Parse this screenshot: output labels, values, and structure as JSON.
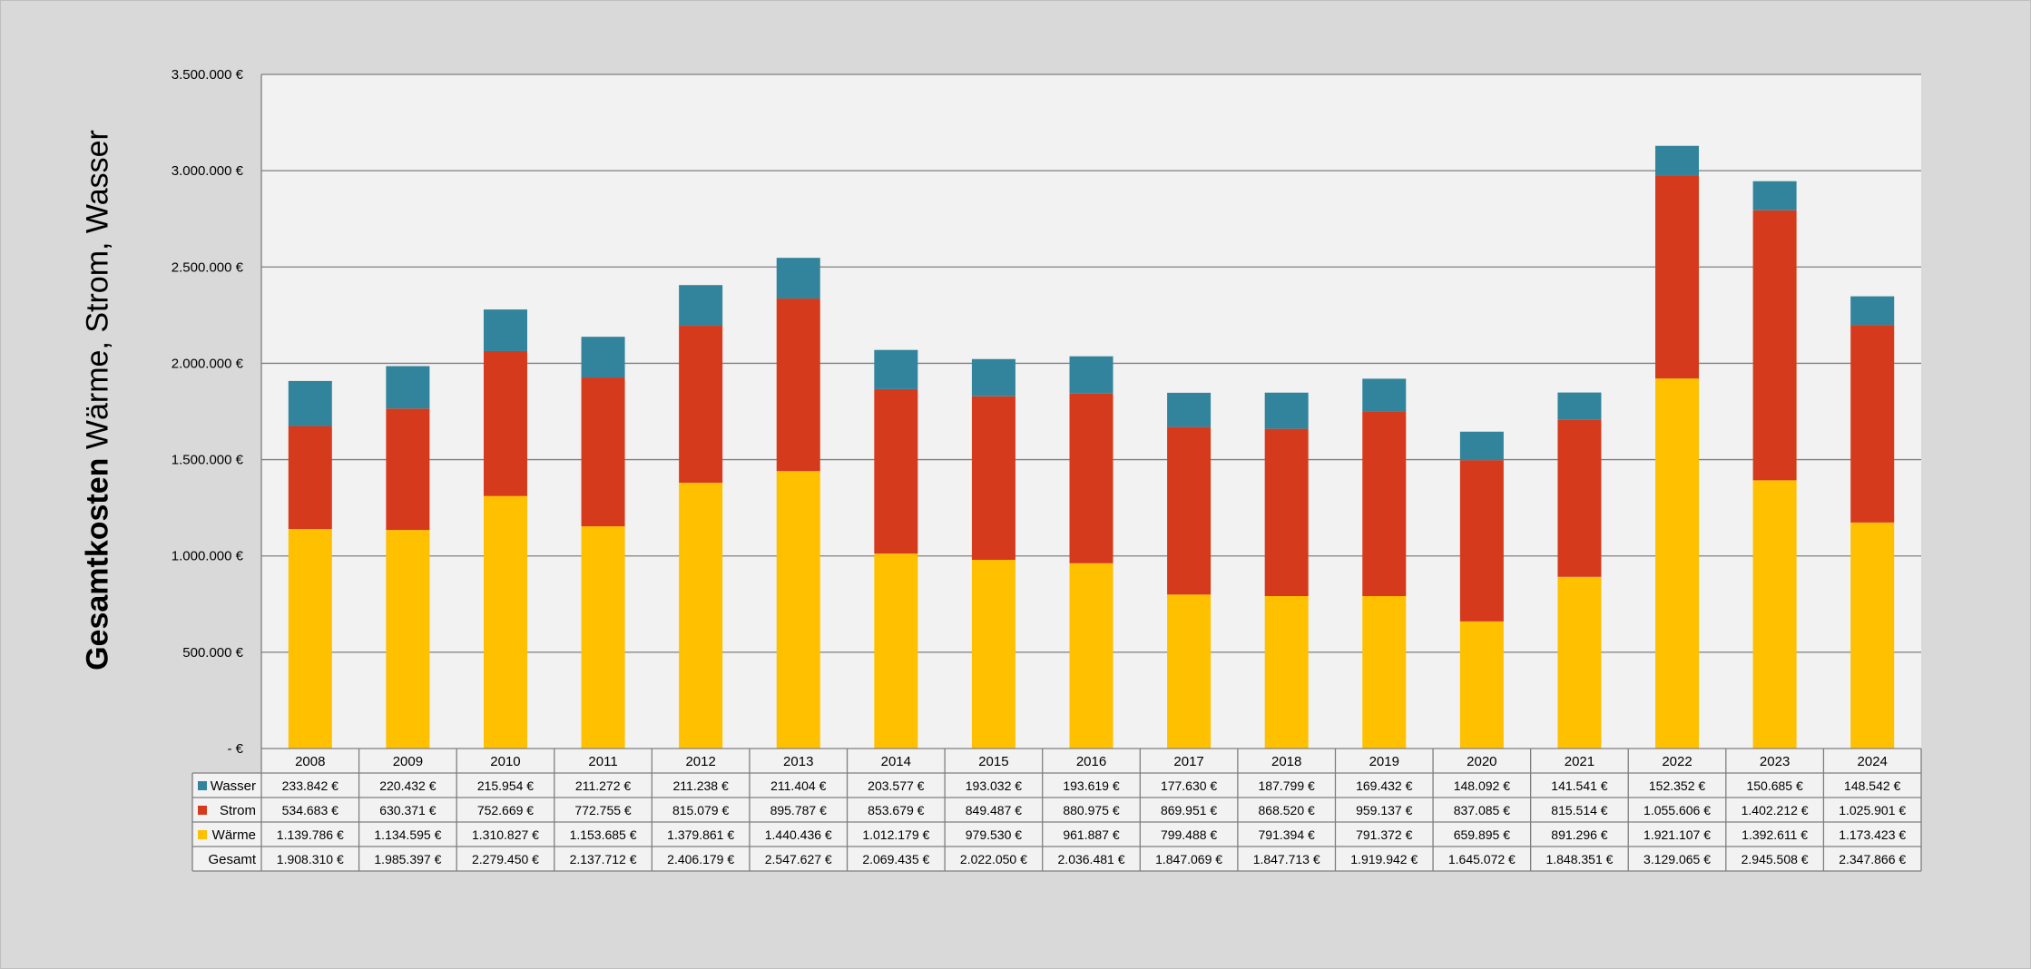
{
  "chart_data": {
    "type": "bar",
    "stacked": true,
    "title": "",
    "ylabel_bold": "Gesamtkosten",
    "ylabel_rest": "Wärme, Strom, Wasser",
    "ylim": [
      0,
      3500000
    ],
    "yticks": [
      0,
      500000,
      1000000,
      1500000,
      2000000,
      2500000,
      3000000,
      3500000
    ],
    "ytick_labels": [
      "-  €",
      "500.000 €",
      "1.000.000 €",
      "1.500.000 €",
      "2.000.000 €",
      "2.500.000 €",
      "3.000.000 €",
      "3.500.000 €"
    ],
    "grid": true,
    "legend": "data-table",
    "categories": [
      "2008",
      "2009",
      "2010",
      "2011",
      "2012",
      "2013",
      "2014",
      "2015",
      "2016",
      "2017",
      "2018",
      "2019",
      "2020",
      "2021",
      "2022",
      "2023",
      "2024"
    ],
    "series": [
      {
        "name": "Wärme",
        "color": "#ffc000",
        "values": [
          1139786,
          1134595,
          1310827,
          1153685,
          1379861,
          1440436,
          1012179,
          979530,
          961887,
          799488,
          791394,
          791372,
          659895,
          891296,
          1921107,
          1392611,
          1173423
        ],
        "labels": [
          "1.139.786 €",
          "1.134.595 €",
          "1.310.827 €",
          "1.153.685 €",
          "1.379.861 €",
          "1.440.436 €",
          "1.012.179 €",
          "979.530 €",
          "961.887 €",
          "799.488 €",
          "791.394 €",
          "791.372 €",
          "659.895 €",
          "891.296 €",
          "1.921.107 €",
          "1.392.611 €",
          "1.173.423 €"
        ]
      },
      {
        "name": "Strom",
        "color": "#d63a1c",
        "values": [
          534683,
          630371,
          752669,
          772755,
          815079,
          895787,
          853679,
          849487,
          880975,
          869951,
          868520,
          959137,
          837085,
          815514,
          1055606,
          1402212,
          1025901
        ],
        "labels": [
          "534.683 €",
          "630.371 €",
          "752.669 €",
          "772.755 €",
          "815.079 €",
          "895.787 €",
          "853.679 €",
          "849.487 €",
          "880.975 €",
          "869.951 €",
          "868.520 €",
          "959.137 €",
          "837.085 €",
          "815.514 €",
          "1.055.606 €",
          "1.402.212 €",
          "1.025.901 €"
        ]
      },
      {
        "name": "Wasser",
        "color": "#31849b",
        "values": [
          233842,
          220432,
          215954,
          211272,
          211238,
          211404,
          203577,
          193032,
          193619,
          177630,
          187799,
          169432,
          148092,
          141541,
          152352,
          150685,
          148542
        ],
        "labels": [
          "233.842 €",
          "220.432 €",
          "215.954 €",
          "211.272 €",
          "211.238 €",
          "211.404 €",
          "203.577 €",
          "193.032 €",
          "193.619 €",
          "177.630 €",
          "187.799 €",
          "169.432 €",
          "148.092 €",
          "141.541 €",
          "152.352 €",
          "150.685 €",
          "148.542 €"
        ]
      }
    ],
    "total": {
      "name": "Gesamt",
      "values": [
        1908310,
        1985397,
        2279450,
        2137712,
        2406179,
        2547627,
        2069435,
        2022050,
        2036481,
        1847069,
        1847713,
        1919942,
        1645072,
        1848351,
        3129065,
        2945508,
        2347866
      ],
      "labels": [
        "1.908.310 €",
        "1.985.397 €",
        "2.279.450 €",
        "2.137.712 €",
        "2.406.179 €",
        "2.547.627 €",
        "2.069.435 €",
        "2.022.050 €",
        "2.036.481 €",
        "1.847.069 €",
        "1.847.713 €",
        "1.919.942 €",
        "1.645.072 €",
        "1.848.351 €",
        "3.129.065 €",
        "2.945.508 €",
        "2.347.866 €"
      ]
    },
    "table_row_order": [
      "Wasser",
      "Strom",
      "Wärme",
      "Gesamt"
    ]
  }
}
